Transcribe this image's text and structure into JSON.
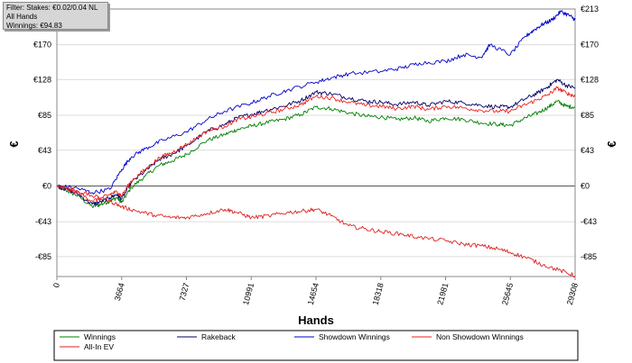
{
  "info_box": {
    "filter": "Filter: Stakes: €0.02/0.04 NL",
    "hands": "All Hands",
    "winnings": "Winnings: €94.83"
  },
  "chart_data": {
    "type": "line",
    "xlabel": "Hands",
    "ylabel": "€",
    "xlim": [
      0,
      29308
    ],
    "ylim": [
      -109,
      213
    ],
    "x_ticks": [
      0,
      3664,
      7327,
      10991,
      14654,
      18318,
      21981,
      25645,
      29308
    ],
    "y_ticks": [
      {
        "value": -85,
        "label": "-€85"
      },
      {
        "value": -43,
        "label": "-€43"
      },
      {
        "value": 0,
        "label": "€0"
      },
      {
        "value": 43,
        "label": "€43"
      },
      {
        "value": 85,
        "label": "€85"
      },
      {
        "value": 128,
        "label": "€128"
      },
      {
        "value": 170,
        "label": "€170"
      },
      {
        "value": 213,
        "label": "€213"
      }
    ],
    "grid": "horizontal",
    "legend_position": "bottom",
    "series": [
      {
        "name": "Winnings",
        "color": "#008000",
        "x": [
          0,
          500,
          1200,
          2000,
          2500,
          3000,
          3400,
          3664,
          4200,
          5000,
          5800,
          6500,
          7327,
          8500,
          9500,
          10200,
          10991,
          11800,
          12800,
          13800,
          14654,
          15500,
          16500,
          17500,
          18318,
          19200,
          20200,
          21000,
          21981,
          23000,
          24000,
          25000,
          25645,
          26500,
          27200,
          27800,
          28300,
          28800,
          29308
        ],
        "values": [
          0,
          -5,
          -12,
          -25,
          -22,
          -18,
          -14,
          -20,
          -2,
          12,
          25,
          30,
          38,
          55,
          62,
          68,
          72,
          76,
          80,
          86,
          95,
          93,
          88,
          84,
          83,
          80,
          82,
          78,
          82,
          80,
          76,
          74,
          73,
          82,
          88,
          95,
          102,
          96,
          95
        ]
      },
      {
        "name": "Rakeback",
        "color": "#000066",
        "x": [
          0,
          500,
          1200,
          2000,
          2500,
          3000,
          3400,
          3664,
          4200,
          5000,
          5800,
          6500,
          7327,
          8500,
          9500,
          10200,
          10991,
          11800,
          12800,
          13800,
          14654,
          15500,
          16500,
          17500,
          18318,
          19200,
          20200,
          21000,
          21981,
          23000,
          24000,
          25000,
          25645,
          26500,
          27200,
          27800,
          28300,
          28800,
          29308
        ],
        "values": [
          0,
          -4,
          -10,
          -22,
          -19,
          -14,
          -10,
          -16,
          4,
          18,
          32,
          38,
          48,
          66,
          74,
          82,
          86,
          91,
          96,
          103,
          113,
          111,
          106,
          102,
          101,
          98,
          101,
          97,
          102,
          100,
          97,
          95,
          95,
          105,
          112,
          120,
          128,
          121,
          118
        ]
      },
      {
        "name": "Showdown Winnings",
        "color": "#0000cc",
        "x": [
          0,
          1000,
          2000,
          3000,
          3664,
          4200,
          5000,
          6000,
          7327,
          8500,
          9500,
          10991,
          12000,
          13000,
          14654,
          15500,
          16500,
          18318,
          19500,
          20500,
          21981,
          23000,
          24000,
          24500,
          25645,
          26500,
          27000,
          27500,
          28000,
          28500,
          29000,
          29308
        ],
        "values": [
          0,
          -2,
          -8,
          -4,
          20,
          35,
          45,
          55,
          65,
          80,
          90,
          100,
          108,
          115,
          125,
          130,
          135,
          138,
          142,
          148,
          150,
          158,
          155,
          170,
          158,
          180,
          188,
          195,
          200,
          210,
          205,
          200
        ]
      },
      {
        "name": "Non Showdown Winnings",
        "color": "#ee2222",
        "x": [
          0,
          500,
          1200,
          2000,
          2500,
          3000,
          3400,
          3664,
          4200,
          5000,
          5800,
          6500,
          7327,
          8500,
          9500,
          10200,
          10991,
          11800,
          12800,
          13800,
          14654,
          15500,
          16500,
          17500,
          18318,
          19200,
          20200,
          21000,
          21981,
          23000,
          24000,
          25000,
          25645,
          26500,
          27200,
          27800,
          28300,
          28800,
          29308
        ],
        "values": [
          0,
          -3,
          -8,
          -18,
          -15,
          -10,
          -7,
          -12,
          6,
          20,
          34,
          40,
          50,
          66,
          72,
          80,
          83,
          87,
          92,
          98,
          108,
          106,
          101,
          97,
          96,
          93,
          96,
          92,
          96,
          94,
          91,
          90,
          90,
          98,
          104,
          110,
          118,
          112,
          108
        ]
      },
      {
        "name": "All-In EV",
        "color": "#dd2222",
        "x": [
          0,
          1000,
          2000,
          3000,
          3664,
          4500,
          5500,
          6500,
          7327,
          8500,
          9500,
          10200,
          10991,
          12000,
          13000,
          14000,
          14654,
          15500,
          16500,
          17500,
          18318,
          19500,
          20500,
          21981,
          23000,
          24000,
          25000,
          25645,
          26500,
          27500,
          28500,
          29308
        ],
        "values": [
          0,
          -5,
          -12,
          -18,
          -25,
          -30,
          -35,
          -38,
          -38,
          -33,
          -28,
          -32,
          -38,
          -36,
          -32,
          -30,
          -28,
          -36,
          -48,
          -52,
          -55,
          -58,
          -62,
          -66,
          -70,
          -72,
          -76,
          -80,
          -86,
          -95,
          -102,
          -108
        ]
      }
    ]
  }
}
